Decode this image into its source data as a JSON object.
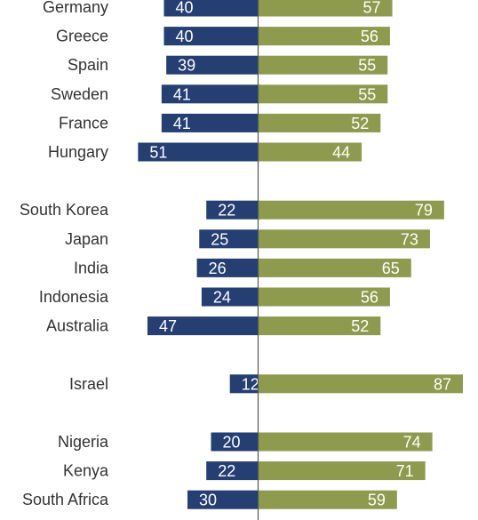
{
  "chart_data": {
    "type": "bar",
    "orientation": "horizontal-diverging",
    "colors": {
      "left": "#253f73",
      "right": "#8e9a4e",
      "axis": "#555555"
    },
    "xlim": [
      -60,
      90
    ],
    "categories": [
      "Germany",
      "Greece",
      "Spain",
      "Sweden",
      "France",
      "Hungary",
      "South Korea",
      "Japan",
      "India",
      "Indonesia",
      "Australia",
      "Israel",
      "Nigeria",
      "Kenya",
      "South Africa"
    ],
    "groups": [
      6,
      5,
      1,
      3
    ],
    "series": [
      {
        "values": [
          40,
          40,
          39,
          41,
          41,
          51,
          22,
          25,
          26,
          24,
          47,
          12,
          20,
          22,
          30
        ]
      },
      {
        "values": [
          57,
          56,
          55,
          55,
          52,
          44,
          79,
          73,
          65,
          56,
          52,
          87,
          74,
          71,
          59
        ]
      }
    ]
  }
}
